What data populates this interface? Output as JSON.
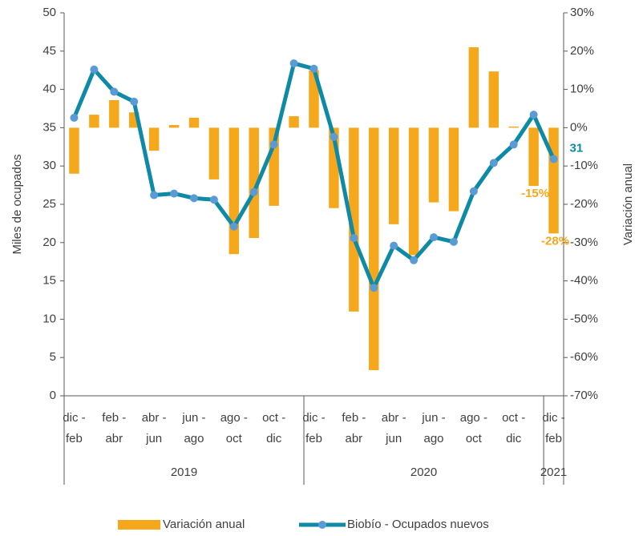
{
  "chart_data": {
    "type": "bar_line",
    "categories": [
      "dic -\nfeb",
      null,
      "feb -\nabr",
      null,
      "abr -\njun",
      null,
      "jun -\nago",
      null,
      "ago -\noct",
      null,
      "oct -\ndic",
      null,
      "dic -\nfeb",
      null,
      "feb -\nabr",
      null,
      "abr -\njun",
      null,
      "jun -\nago",
      null,
      "ago -\noct",
      null,
      "oct -\ndic",
      null,
      "dic -\nfeb"
    ],
    "x_groups": [
      "2019",
      "2020",
      "2021"
    ],
    "x_group_sizes": [
      12,
      12,
      1
    ],
    "ylabel": "Miles de ocupados",
    "y2label": "Variación anual",
    "ylim": [
      0,
      50
    ],
    "yticks": [
      0,
      5,
      10,
      15,
      20,
      25,
      30,
      35,
      40,
      45,
      50
    ],
    "y2lim": [
      -70,
      30
    ],
    "y2ticks": [
      {
        "value": -70,
        "label": "-70%"
      },
      {
        "value": -60,
        "label": "-60%"
      },
      {
        "value": -50,
        "label": "-50%"
      },
      {
        "value": -40,
        "label": "-40%"
      },
      {
        "value": -30,
        "label": "-30%"
      },
      {
        "value": -20,
        "label": "-20%"
      },
      {
        "value": -10,
        "label": "-10%"
      },
      {
        "value": 0,
        "label": "0%"
      },
      {
        "value": 10,
        "label": "10%"
      },
      {
        "value": 20,
        "label": "20%"
      },
      {
        "value": 30,
        "label": "30%"
      }
    ],
    "series": [
      {
        "name": "Variación anual",
        "type": "bar",
        "axis": "y2",
        "color": "#f5a81c",
        "values": [
          -12,
          3.4,
          7.2,
          4,
          -6,
          0.7,
          2.6,
          -13.5,
          -33,
          -28.8,
          -20.4,
          3,
          15,
          -21,
          -48,
          -63.3,
          -25.2,
          -33.3,
          -19.5,
          -21.8,
          21,
          14.7,
          0.3,
          -15.2,
          -27.6
        ],
        "value_labels": [
          null,
          null,
          null,
          null,
          null,
          null,
          null,
          null,
          null,
          null,
          null,
          null,
          null,
          null,
          null,
          null,
          null,
          null,
          null,
          null,
          null,
          null,
          null,
          "-15%",
          "-28%"
        ]
      },
      {
        "name": "Biobío - Ocupados nuevos",
        "type": "line",
        "axis": "y",
        "color": "#0e8aa6",
        "marker_color": "#5b9bd5",
        "values": [
          36.3,
          42.6,
          39.7,
          38.4,
          26.2,
          26.4,
          25.8,
          25.6,
          22.1,
          26.6,
          32.8,
          43.4,
          42.7,
          33.8,
          20.6,
          14.1,
          19.6,
          17.7,
          20.7,
          20.1,
          26.7,
          30.4,
          32.8,
          36.7,
          30.9
        ],
        "value_labels": [
          null,
          null,
          null,
          null,
          null,
          null,
          null,
          null,
          null,
          null,
          null,
          null,
          null,
          null,
          null,
          null,
          null,
          null,
          null,
          null,
          null,
          null,
          null,
          null,
          "31"
        ]
      }
    ]
  }
}
